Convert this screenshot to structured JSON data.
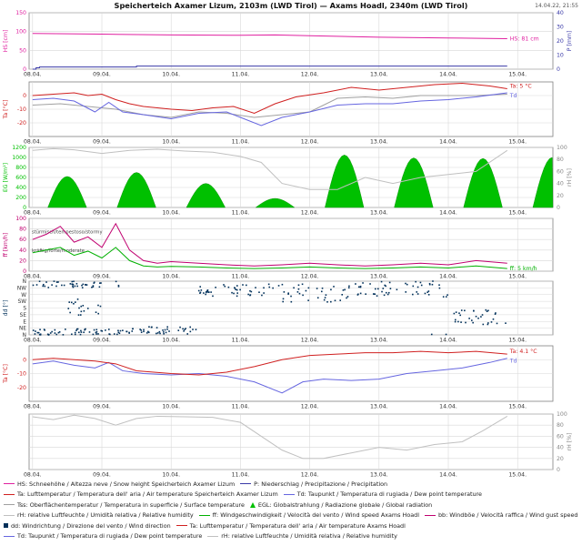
{
  "header": {
    "title": "Speicherteich Axamer Lizum, 2103m (LWD Tirol) — Axams Hoadl, 2340m (LWD Tirol)",
    "timestamp": "14.04.22, 21:55"
  },
  "colors": {
    "snow": "#e020a0",
    "precip": "#3a3aa8",
    "air_temp": "#d02020",
    "dew_point": "#6666e0",
    "surface_temp": "#a0a0a0",
    "radiation": "#00c000",
    "humidity": "#c0c0c0",
    "wind": "#00b000",
    "gust": "#c00070",
    "wind_dir": "#00305a",
    "grid": "#d8d8d8",
    "panel_border": "#808080"
  },
  "legend": [
    {
      "name": "legend-hs",
      "color": "#e020a0",
      "shape": "line",
      "label": "HS: Schneehöhe / Altezza neve / Snow height  Speicherteich Axamer Lizum"
    },
    {
      "name": "legend-p",
      "color": "#3a3aa8",
      "shape": "line",
      "label": "P: Niederschlag / Precipitazione / Precipitation"
    },
    {
      "name": "legend-ta",
      "color": "#d02020",
      "shape": "line",
      "label": "Ta: Lufttemperatur / Temperatura dell' aria / Air temperature  Speicherteich Axamer Lizum"
    },
    {
      "name": "legend-td",
      "color": "#6666e0",
      "shape": "line",
      "label": "Td: Taupunkt / Temperatura di rugiada / Dew point temperature"
    },
    {
      "name": "legend-tss",
      "color": "#a0a0a0",
      "shape": "line",
      "label": "Tss: Oberflächentemperatur / Temperatura in superficie / Surface temperature"
    },
    {
      "name": "legend-egl",
      "color": "#00c000",
      "shape": "triangle",
      "label": "EGL: Globalstrahlung / Radiazione globale / Global radiation"
    },
    {
      "name": "legend-rh",
      "color": "#c0c0c0",
      "shape": "line",
      "label": "rH: relative Luftfeuchte / Umidità relativa / Relative humidity"
    },
    {
      "name": "legend-ff",
      "color": "#00b000",
      "shape": "line",
      "label": "ff: Windgeschwindigkeit / Velocità del vento / Wind speed  Axams Hoadl"
    },
    {
      "name": "legend-bb",
      "color": "#c00070",
      "shape": "line",
      "label": "bb: Windböe / Velocità raffica / Wind gust speed"
    },
    {
      "name": "legend-dd",
      "color": "#00305a",
      "shape": "square",
      "label": "dd: Windrichtung / Direzione del vento / Wind direction"
    },
    {
      "name": "legend-ta2",
      "color": "#d02020",
      "shape": "line",
      "label": "Ta: Lufttemperatur / Temperatura dell' aria / Air temperature  Axams Hoadl"
    },
    {
      "name": "legend-td2",
      "color": "#6666e0",
      "shape": "line",
      "label": "Td: Taupunkt / Temperatura di rugiada / Dew point temperature"
    },
    {
      "name": "legend-rh2",
      "color": "#c0c0c0",
      "shape": "line",
      "label": "rH: relative Luftfeuchte / Umidità relativa / Relative humidity"
    }
  ],
  "chart_data": [
    {
      "type": "line",
      "id": "snow",
      "ylabel": "HS [cm]",
      "ylabel2": "P [mm]",
      "ylim": [
        0,
        150
      ],
      "yticks": [
        0,
        50,
        100,
        150
      ],
      "ylim2": [
        0,
        40
      ],
      "yticks2": [
        0,
        10,
        20,
        30,
        40
      ],
      "dates": [
        "08.04.",
        "09.04.",
        "10.04.",
        "11.04.",
        "12.04.",
        "13.04.",
        "14.04.",
        "15.04."
      ],
      "series": [
        {
          "key": "HS",
          "axis": "left",
          "color_key": "snow",
          "x": [
            0,
            1,
            2,
            3,
            3.5,
            4,
            5,
            6,
            6.85
          ],
          "y": [
            95,
            93,
            91,
            90,
            91,
            89,
            85,
            83,
            81
          ]
        },
        {
          "key": "P",
          "axis": "right",
          "color_key": "precip",
          "step": true,
          "x": [
            0,
            0.05,
            0.1,
            1.3,
            1.5,
            3.6,
            3.8,
            6.85
          ],
          "y": [
            0,
            1,
            1.5,
            1.5,
            2.2,
            2.2,
            2.2,
            2.2
          ]
        }
      ],
      "annotations": [
        {
          "text": "HS: 81 cm",
          "x": 6.85,
          "y": 81,
          "color_key": "snow"
        }
      ]
    },
    {
      "type": "line",
      "id": "temp-lizum",
      "ylabel": "Ta [°C]",
      "ylim": [
        -30,
        10
      ],
      "yticks": [
        -20,
        -10,
        0
      ],
      "dates": [
        "08.04.",
        "09.04.",
        "10.04.",
        "11.04.",
        "12.04.",
        "13.04.",
        "14.04.",
        "15.04."
      ],
      "series": [
        {
          "key": "Ta",
          "color_key": "air_temp",
          "x": [
            0,
            0.3,
            0.6,
            0.8,
            1.0,
            1.2,
            1.4,
            1.6,
            2.0,
            2.3,
            2.6,
            2.9,
            3.2,
            3.5,
            3.8,
            4.2,
            4.6,
            5.0,
            5.4,
            5.8,
            6.2,
            6.6,
            6.85
          ],
          "y": [
            0,
            1,
            2,
            0,
            1,
            -3,
            -6,
            -8,
            -10,
            -11,
            -9,
            -8,
            -13,
            -6,
            -1,
            2,
            6,
            4,
            6,
            8,
            9,
            7,
            5
          ]
        },
        {
          "key": "Td",
          "color_key": "dew_point",
          "x": [
            0,
            0.3,
            0.6,
            0.9,
            1.1,
            1.3,
            1.6,
            2.0,
            2.4,
            2.8,
            3.0,
            3.3,
            3.6,
            4.0,
            4.4,
            4.8,
            5.2,
            5.6,
            6.0,
            6.4,
            6.85
          ],
          "y": [
            -3,
            -2,
            -4,
            -12,
            -5,
            -12,
            -14,
            -17,
            -13,
            -12,
            -16,
            -22,
            -16,
            -12,
            -7,
            -6,
            -6,
            -4,
            -3,
            -1,
            2
          ]
        },
        {
          "key": "Tss",
          "color_key": "surface_temp",
          "x": [
            0,
            0.4,
            0.8,
            1.2,
            1.6,
            2.0,
            2.4,
            2.8,
            3.2,
            3.6,
            4.0,
            4.4,
            4.8,
            5.2,
            5.6,
            6.0,
            6.4,
            6.85
          ],
          "y": [
            -7,
            -6,
            -8,
            -10,
            -14,
            -16,
            -12,
            -13,
            -16,
            -14,
            -12,
            -2,
            -1,
            -2,
            0,
            0,
            0,
            1
          ]
        }
      ],
      "annotations": [
        {
          "text": "Ta: 5 °C",
          "x": 6.85,
          "y": 5,
          "color_key": "air_temp"
        },
        {
          "text": "Td",
          "x": 6.85,
          "y": 2,
          "color_key": "dew_point"
        }
      ]
    },
    {
      "type": "area",
      "id": "radiation",
      "ylabel": "EG [W/m²]",
      "ylabel2": "rH [%]",
      "ylim": [
        0,
        1200
      ],
      "yticks": [
        0,
        200,
        400,
        600,
        800,
        1000,
        1200
      ],
      "ylim2": [
        0,
        100
      ],
      "yticks2": [
        0,
        20,
        40,
        60,
        80,
        100
      ],
      "dates": [
        "08.04.",
        "09.04.",
        "10.04.",
        "11.04.",
        "12.04.",
        "13.04.",
        "14.04.",
        "15.04."
      ],
      "daily_peaks": [
        {
          "center": 0.5,
          "peak": 620
        },
        {
          "center": 1.5,
          "peak": 700
        },
        {
          "center": 2.5,
          "peak": 480
        },
        {
          "center": 3.5,
          "peak": 180
        },
        {
          "center": 4.5,
          "peak": 1050
        },
        {
          "center": 5.5,
          "peak": 990
        },
        {
          "center": 6.5,
          "peak": 980
        },
        {
          "center": 7.5,
          "peak": 1000
        }
      ],
      "series": [
        {
          "key": "rH",
          "axis": "right",
          "color_key": "humidity",
          "x": [
            0,
            0.3,
            0.6,
            1.0,
            1.4,
            1.8,
            2.2,
            2.6,
            3.0,
            3.3,
            3.6,
            4.0,
            4.4,
            4.8,
            5.2,
            5.6,
            6.0,
            6.4,
            6.85
          ],
          "y": [
            95,
            98,
            96,
            90,
            95,
            97,
            94,
            92,
            85,
            75,
            40,
            30,
            30,
            50,
            40,
            50,
            55,
            60,
            95
          ]
        }
      ]
    },
    {
      "type": "line",
      "id": "wind",
      "ylabel": "ff [km/h]",
      "ylim": [
        0,
        100
      ],
      "yticks": [
        0,
        20,
        40,
        60,
        80,
        100
      ],
      "dates": [
        "08.04.",
        "09.04.",
        "10.04.",
        "11.04.",
        "12.04.",
        "13.04.",
        "14.04.",
        "15.04."
      ],
      "threshold_labels": [
        {
          "text": "stürmisch/tempestoso/stormy",
          "y": 75
        },
        {
          "text": "kräftig/forte/moderate",
          "y": 40
        }
      ],
      "series": [
        {
          "key": "bb",
          "color_key": "gust",
          "x": [
            0,
            0.2,
            0.4,
            0.6,
            0.8,
            1.0,
            1.2,
            1.4,
            1.6,
            1.8,
            2.0,
            2.4,
            2.8,
            3.2,
            3.6,
            4.0,
            4.4,
            4.8,
            5.2,
            5.6,
            6.0,
            6.4,
            6.85
          ],
          "y": [
            60,
            70,
            85,
            55,
            65,
            45,
            90,
            40,
            20,
            15,
            18,
            15,
            12,
            10,
            12,
            15,
            12,
            10,
            12,
            15,
            12,
            20,
            15
          ]
        },
        {
          "key": "ff",
          "color_key": "wind",
          "x": [
            0,
            0.2,
            0.4,
            0.6,
            0.8,
            1.0,
            1.2,
            1.4,
            1.6,
            1.8,
            2.0,
            2.4,
            2.8,
            3.2,
            3.6,
            4.0,
            4.4,
            4.8,
            5.2,
            5.6,
            6.0,
            6.4,
            6.85
          ],
          "y": [
            35,
            40,
            45,
            30,
            38,
            25,
            45,
            20,
            10,
            8,
            9,
            8,
            6,
            5,
            6,
            8,
            6,
            5,
            6,
            8,
            6,
            10,
            5
          ]
        }
      ],
      "annotations": [
        {
          "text": "ff: 5 km/h",
          "x": 6.85,
          "y": 5,
          "color_key": "wind"
        }
      ]
    },
    {
      "type": "scatter",
      "id": "wind-direction",
      "ylabel": "dd [°]",
      "categories_y": [
        "N",
        "NE",
        "E",
        "SE",
        "S",
        "SW",
        "W",
        "NW",
        "N"
      ],
      "ylim": [
        0,
        360
      ],
      "dates": [
        "08.04.",
        "09.04.",
        "10.04.",
        "11.04.",
        "12.04.",
        "13.04.",
        "14.04.",
        "15.04."
      ],
      "clusters": [
        {
          "from": 0.0,
          "to": 1.3,
          "center": 340,
          "spread": 25
        },
        {
          "from": 0.0,
          "to": 1.4,
          "center": 20,
          "spread": 20
        },
        {
          "from": 0.5,
          "to": 1.0,
          "center": 190,
          "spread": 60
        },
        {
          "from": 1.3,
          "to": 2.4,
          "center": 30,
          "spread": 25
        },
        {
          "from": 2.4,
          "to": 3.6,
          "center": 300,
          "spread": 40
        },
        {
          "from": 3.6,
          "to": 4.6,
          "center": 280,
          "spread": 60
        },
        {
          "from": 4.6,
          "to": 6.0,
          "center": 310,
          "spread": 55
        },
        {
          "from": 6.0,
          "to": 6.85,
          "center": 120,
          "spread": 50
        }
      ]
    },
    {
      "type": "line",
      "id": "temp-hoadl",
      "ylabel": "Ta [°C]",
      "ylim": [
        -30,
        10
      ],
      "yticks": [
        -20,
        -10,
        0
      ],
      "dates": [
        "08.04.",
        "09.04.",
        "10.04.",
        "11.04.",
        "12.04.",
        "13.04.",
        "14.04.",
        "15.04."
      ],
      "series": [
        {
          "key": "Ta",
          "color_key": "air_temp",
          "x": [
            0,
            0.3,
            0.6,
            0.9,
            1.2,
            1.5,
            2.0,
            2.4,
            2.8,
            3.2,
            3.6,
            4.0,
            4.4,
            4.8,
            5.2,
            5.6,
            6.0,
            6.4,
            6.85
          ],
          "y": [
            0,
            1,
            0,
            -1,
            -3,
            -8,
            -10,
            -11,
            -9,
            -5,
            0,
            3,
            4,
            5,
            5,
            6,
            5,
            6,
            4
          ]
        },
        {
          "key": "Td",
          "color_key": "dew_point",
          "x": [
            0,
            0.3,
            0.6,
            0.9,
            1.1,
            1.3,
            1.6,
            2.0,
            2.4,
            2.8,
            3.2,
            3.6,
            3.9,
            4.2,
            4.6,
            5.0,
            5.4,
            5.8,
            6.2,
            6.6,
            6.85
          ],
          "y": [
            -3,
            -1,
            -4,
            -6,
            -2,
            -8,
            -10,
            -11,
            -10,
            -12,
            -16,
            -24,
            -16,
            -14,
            -15,
            -14,
            -10,
            -8,
            -6,
            -2,
            1
          ]
        }
      ],
      "annotations": [
        {
          "text": "Ta: 4.1 °C",
          "x": 6.85,
          "y": 4.1,
          "color_key": "air_temp"
        },
        {
          "text": "Td",
          "x": 6.85,
          "y": 1,
          "color_key": "dew_point"
        }
      ]
    },
    {
      "type": "line",
      "id": "humidity-hoadl",
      "ylabel2": "rH [%]",
      "ylim2": [
        0,
        100
      ],
      "yticks2": [
        0,
        20,
        40,
        60,
        80,
        100
      ],
      "dates": [
        "08.04.",
        "09.04.",
        "10.04.",
        "11.04.",
        "12.04.",
        "13.04.",
        "14.04.",
        "15.04."
      ],
      "series": [
        {
          "key": "rH",
          "axis": "right",
          "color_key": "humidity",
          "x": [
            0,
            0.3,
            0.6,
            0.9,
            1.2,
            1.5,
            1.8,
            2.2,
            2.6,
            3.0,
            3.3,
            3.6,
            3.9,
            4.2,
            4.6,
            5.0,
            5.4,
            5.8,
            6.2,
            6.5,
            6.85
          ],
          "y": [
            95,
            90,
            98,
            92,
            80,
            92,
            96,
            95,
            94,
            85,
            60,
            35,
            20,
            20,
            30,
            40,
            35,
            45,
            50,
            70,
            96
          ]
        }
      ]
    }
  ]
}
